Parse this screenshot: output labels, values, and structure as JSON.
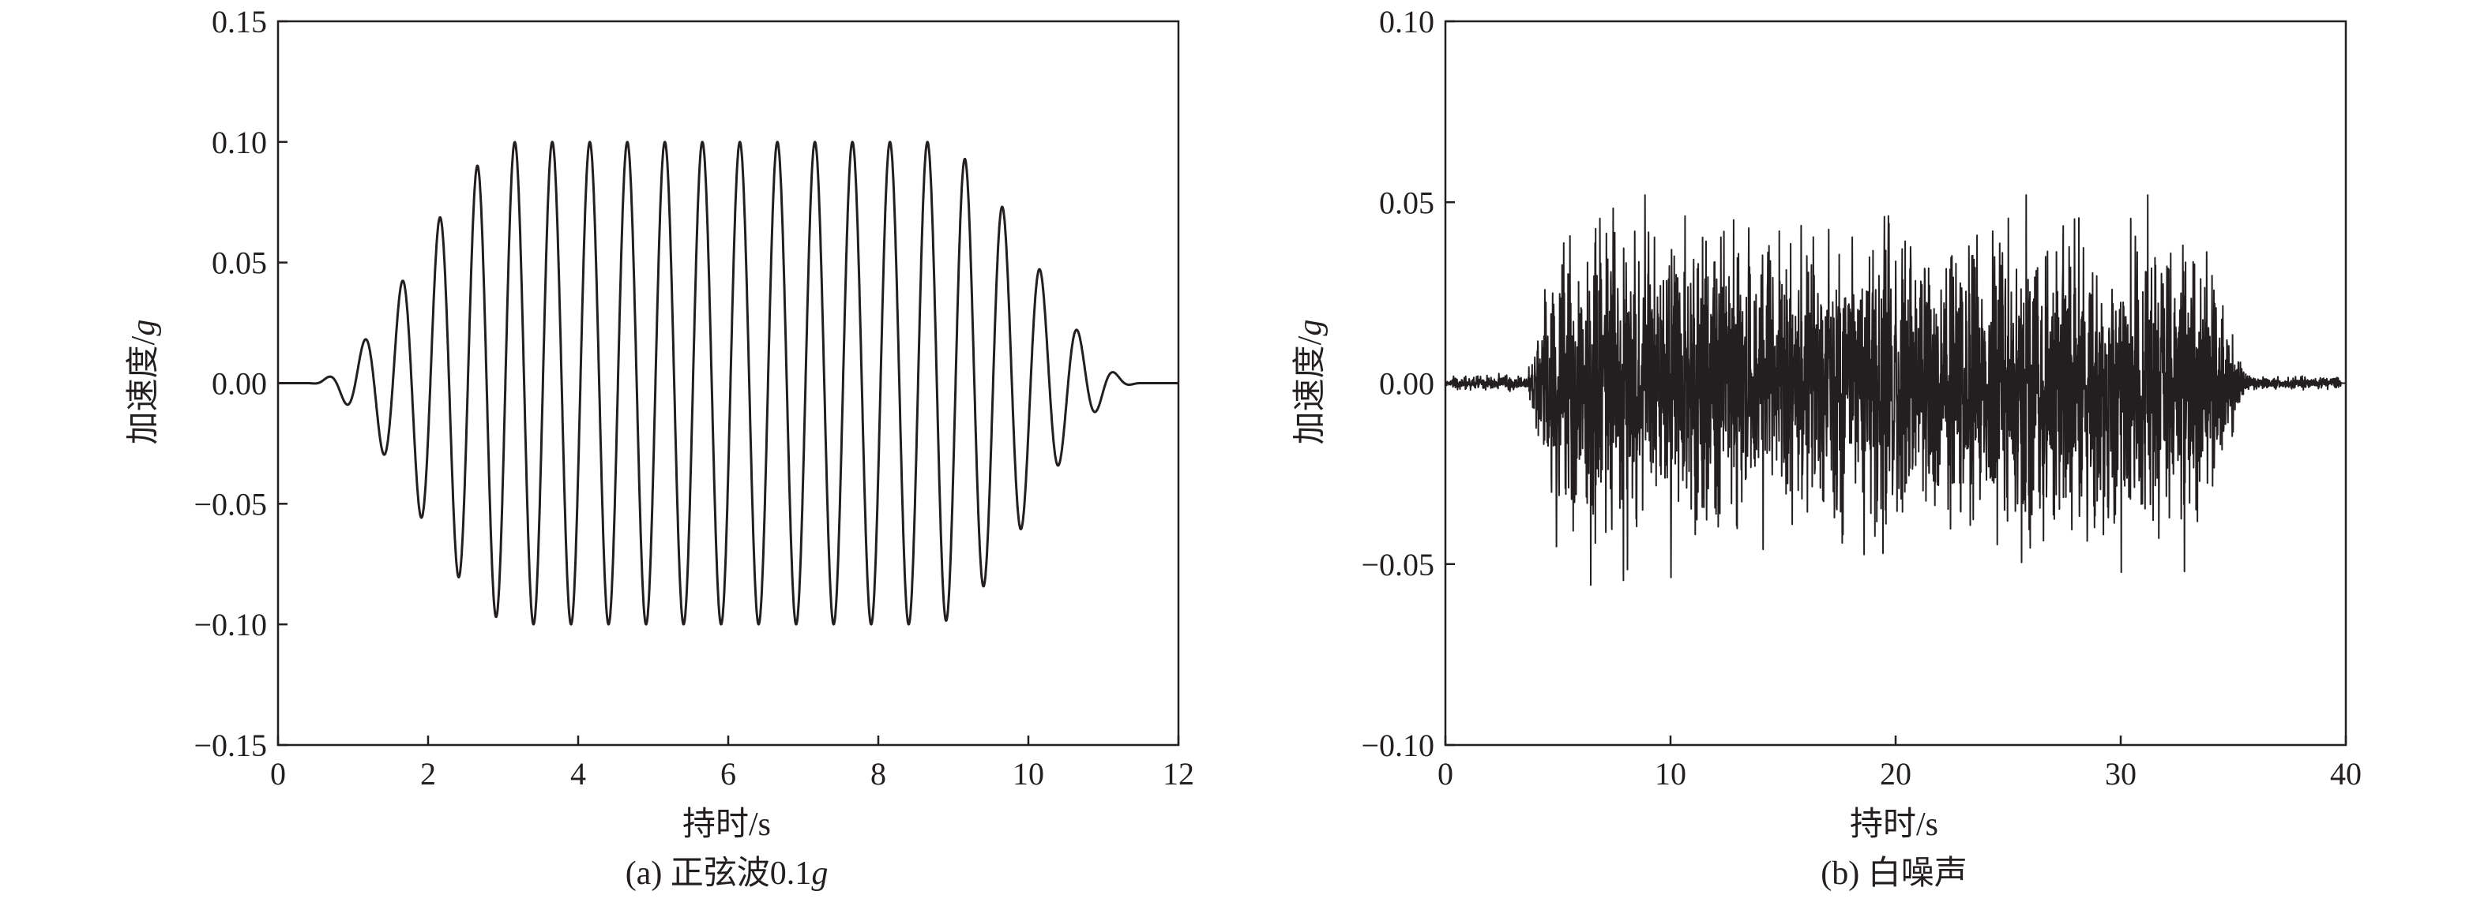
{
  "chart_data": [
    {
      "type": "line",
      "caption": "(a) 正弦波0.1g",
      "caption_prefix": "(a) 正弦波0.1",
      "caption_italic": "g",
      "xlabel": "持时/s",
      "ylabel": "加速度/g",
      "ylabel_prefix": "加速度/",
      "ylabel_italic": "g",
      "xlim": [
        0,
        12
      ],
      "ylim": [
        -0.15,
        0.15
      ],
      "xticks": [
        0,
        2,
        4,
        6,
        8,
        10,
        12
      ],
      "xtick_labels": [
        "0",
        "2",
        "4",
        "6",
        "8",
        "10",
        "12"
      ],
      "yticks": [
        -0.15,
        -0.1,
        -0.05,
        0.0,
        0.05,
        0.1,
        0.15
      ],
      "ytick_labels": [
        "−0.15",
        "−0.10",
        "−0.05",
        "0.00",
        "0.05",
        "0.10",
        "0.15"
      ],
      "grid": false,
      "signal": {
        "kind": "tapered sine wave",
        "period_s": 0.5,
        "peak_amplitude": 0.1,
        "duration_s": 11.5,
        "peaks": [
          {
            "x": 0.65,
            "y": 0.01
          },
          {
            "x": 0.89,
            "y": -0.019
          },
          {
            "x": 1.14,
            "y": 0.031
          },
          {
            "x": 1.38,
            "y": -0.043
          },
          {
            "x": 1.63,
            "y": 0.057
          },
          {
            "x": 1.88,
            "y": -0.069
          },
          {
            "x": 2.13,
            "y": 0.08
          },
          {
            "x": 2.38,
            "y": -0.089
          },
          {
            "x": 2.63,
            "y": 0.096
          },
          {
            "x": 2.88,
            "y": -0.099
          },
          {
            "x": 3.13,
            "y": 0.1
          },
          {
            "x": 3.38,
            "y": -0.1
          },
          {
            "x": 3.63,
            "y": 0.1
          },
          {
            "x": 3.88,
            "y": -0.1
          },
          {
            "x": 4.13,
            "y": 0.1
          },
          {
            "x": 4.38,
            "y": -0.1
          },
          {
            "x": 4.63,
            "y": 0.1
          },
          {
            "x": 4.88,
            "y": -0.1
          },
          {
            "x": 5.13,
            "y": 0.1
          },
          {
            "x": 5.38,
            "y": -0.1
          },
          {
            "x": 5.63,
            "y": 0.1
          },
          {
            "x": 5.88,
            "y": -0.1
          },
          {
            "x": 6.13,
            "y": 0.1
          },
          {
            "x": 6.38,
            "y": -0.1
          },
          {
            "x": 6.63,
            "y": 0.1
          },
          {
            "x": 6.88,
            "y": -0.1
          },
          {
            "x": 7.13,
            "y": 0.1
          },
          {
            "x": 7.38,
            "y": -0.1
          },
          {
            "x": 7.63,
            "y": 0.1
          },
          {
            "x": 7.88,
            "y": -0.1
          },
          {
            "x": 8.13,
            "y": 0.1
          },
          {
            "x": 8.38,
            "y": -0.1
          },
          {
            "x": 8.63,
            "y": 0.1
          },
          {
            "x": 8.88,
            "y": -0.098
          },
          {
            "x": 9.13,
            "y": 0.09
          },
          {
            "x": 9.38,
            "y": -0.081
          },
          {
            "x": 9.63,
            "y": 0.069
          },
          {
            "x": 9.88,
            "y": -0.057
          },
          {
            "x": 10.13,
            "y": 0.044
          },
          {
            "x": 10.38,
            "y": -0.031
          },
          {
            "x": 10.63,
            "y": 0.02
          },
          {
            "x": 10.88,
            "y": -0.01
          },
          {
            "x": 11.13,
            "y": 0.004
          },
          {
            "x": 11.5,
            "y": 0.0
          }
        ]
      }
    },
    {
      "type": "line",
      "caption": "(b) 白噪声",
      "caption_prefix": "(b) 白噪声",
      "caption_italic": "",
      "xlabel": "持时/s",
      "ylabel": "加速度/g",
      "ylabel_prefix": "加速度/",
      "ylabel_italic": "g",
      "xlim": [
        0,
        40
      ],
      "ylim": [
        -0.1,
        0.1
      ],
      "xticks": [
        0,
        10,
        20,
        30,
        40
      ],
      "xtick_labels": [
        "0",
        "10",
        "20",
        "30",
        "40"
      ],
      "yticks": [
        -0.1,
        -0.05,
        0.0,
        0.05,
        0.1
      ],
      "ytick_labels": [
        "−0.10",
        "−0.05",
        "0.00",
        "0.05",
        "0.10"
      ],
      "grid": false,
      "signal": {
        "kind": "band-limited white noise",
        "start_s": 0,
        "end_s": 40,
        "ramp_up_s": [
          3.5,
          5.0
        ],
        "strong_phase_s": [
          5.0,
          33.0
        ],
        "ramp_down_s": [
          33.0,
          36.0
        ],
        "typical_amplitude": 0.03,
        "max": 0.052,
        "min": -0.058
      }
    }
  ],
  "colors": {
    "line": "#231f20",
    "axes": "#231f20",
    "background": "#ffffff"
  }
}
